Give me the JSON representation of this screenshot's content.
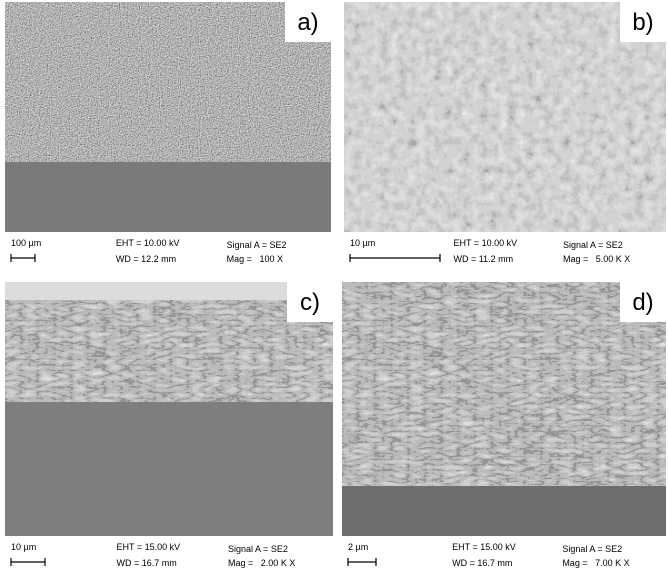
{
  "panels": [
    {
      "label": "a)",
      "scale_bar": "100 µm",
      "eht": "EHT = 10.00 kV",
      "signal": "Signal A = SE2",
      "wd": "WD = 12.2 mm",
      "mag": "Mag =   100 X"
    },
    {
      "label": "b)",
      "scale_bar": "10 µm",
      "eht": "EHT = 10.00 kV",
      "signal": "Signal A = SE2",
      "wd": "WD = 11.2 mm",
      "mag": "Mag =   5.00 K X"
    },
    {
      "label": "c)",
      "scale_bar": "10 µm",
      "eht": "EHT = 15.00 kV",
      "signal": "Signal A = SE2",
      "wd": "WD = 16.7 mm",
      "mag": "Mag =   2.00 K X"
    },
    {
      "label": "d)",
      "scale_bar": "2 µm",
      "eht": "EHT = 15.00 kV",
      "signal": "Signal A = SE2",
      "wd": "WD = 16.7 mm",
      "mag": "Mag =   7.00 K X"
    }
  ]
}
